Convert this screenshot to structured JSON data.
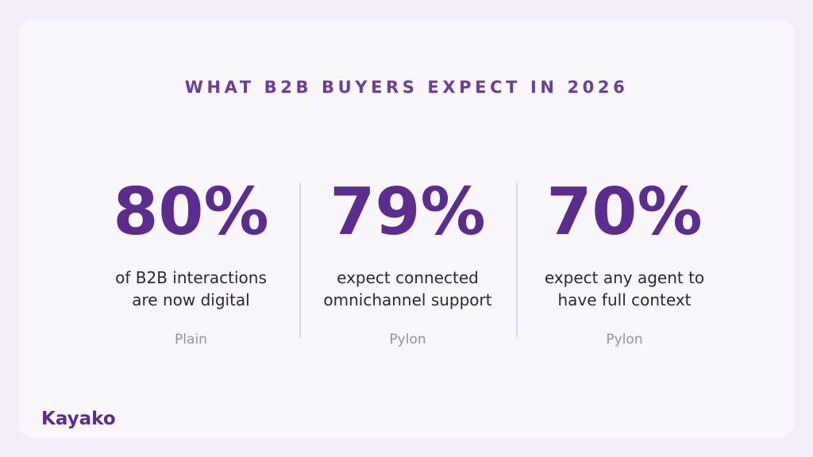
{
  "title": "WHAT B2B BUYERS EXPECT IN 2026",
  "stats": [
    {
      "value": "80%",
      "description": "of B2B interactions\nare now digital",
      "source": "Plain"
    },
    {
      "value": "79%",
      "description": "expect connected\nomnichannel support",
      "source": "Pylon"
    },
    {
      "value": "70%",
      "description": "expect any agent to\nhave full context",
      "source": "Pylon"
    }
  ],
  "brand": "Kayako",
  "colors": {
    "accent": "#5b2d8e",
    "title": "#6a3f9c",
    "background": "#f3eefa",
    "card": "#f9f6fc",
    "source": "#9c8cb0"
  }
}
